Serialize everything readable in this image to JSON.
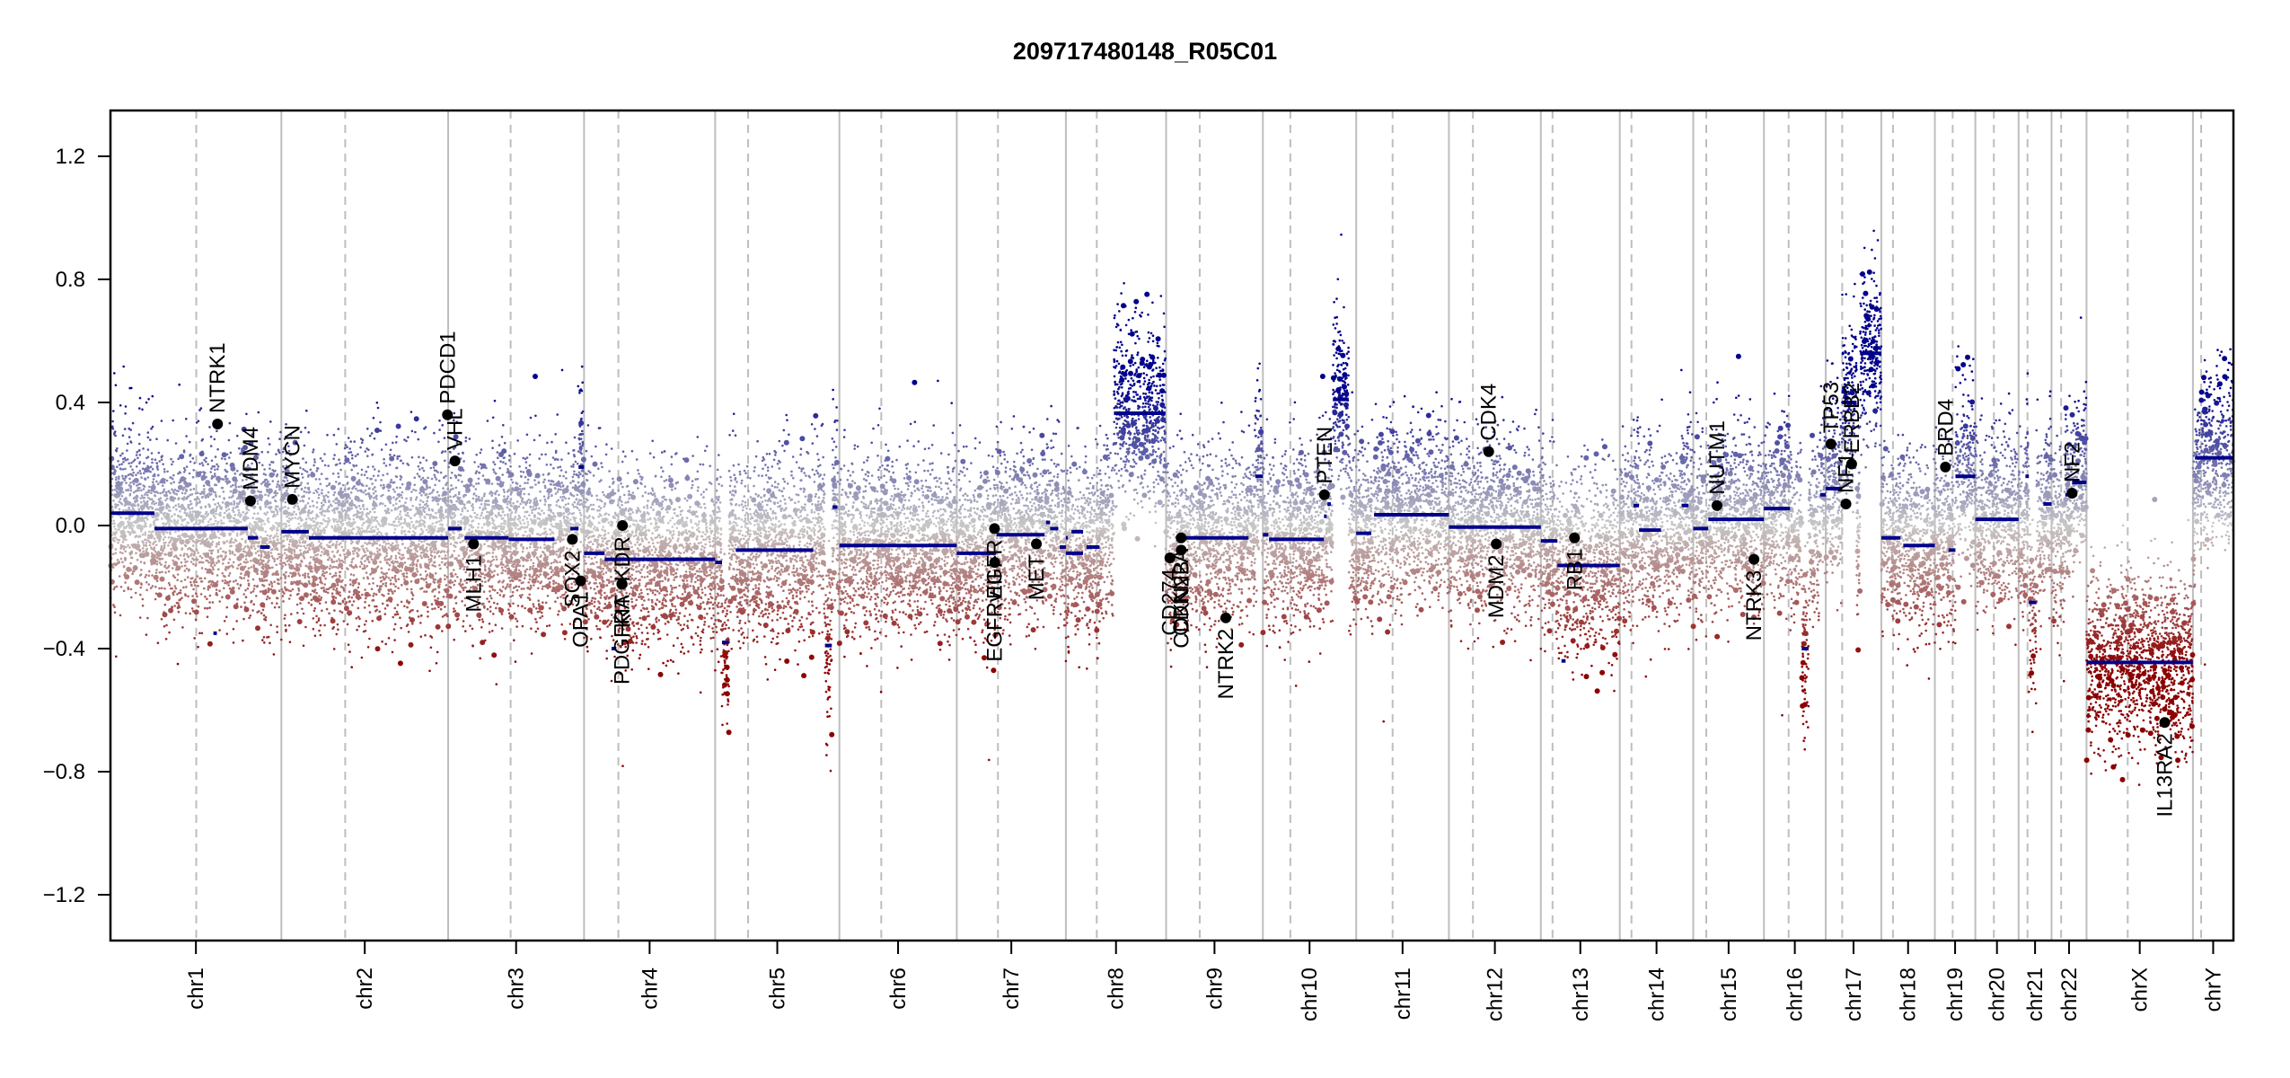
{
  "chart_data": {
    "type": "scatter",
    "title": "209717480148_R05C01",
    "xlabel": "",
    "ylabel": "",
    "ylim": [
      -1.35,
      1.35
    ],
    "yticks": [
      1.2,
      0.8,
      0.4,
      0.0,
      -0.4,
      -0.8,
      -1.2
    ],
    "ytick_labels": [
      "1.2",
      "0.8",
      "0.4",
      "0.0",
      "−0.4",
      "−0.8",
      "−1.2"
    ],
    "grid": false,
    "colors": {
      "gain": "#00008b",
      "neutral": "#c8c8c8",
      "loss": "#8b0000",
      "segment": "#00008b",
      "gene_point": "#000000",
      "chrom_boundary": "#bebebe",
      "centromere": "#bebebe"
    },
    "chromosomes": [
      {
        "name": "chr1",
        "length_mb": 249,
        "centromere_mb": 125
      },
      {
        "name": "chr2",
        "length_mb": 243,
        "centromere_mb": 93
      },
      {
        "name": "chr3",
        "length_mb": 198,
        "centromere_mb": 91
      },
      {
        "name": "chr4",
        "length_mb": 191,
        "centromere_mb": 50
      },
      {
        "name": "chr5",
        "length_mb": 181,
        "centromere_mb": 48
      },
      {
        "name": "chr6",
        "length_mb": 171,
        "centromere_mb": 61
      },
      {
        "name": "chr7",
        "length_mb": 159,
        "centromere_mb": 60
      },
      {
        "name": "chr8",
        "length_mb": 146,
        "centromere_mb": 45
      },
      {
        "name": "chr9",
        "length_mb": 141,
        "centromere_mb": 49
      },
      {
        "name": "chr10",
        "length_mb": 136,
        "centromere_mb": 40
      },
      {
        "name": "chr11",
        "length_mb": 135,
        "centromere_mb": 53
      },
      {
        "name": "chr12",
        "length_mb": 134,
        "centromere_mb": 35
      },
      {
        "name": "chr13",
        "length_mb": 115,
        "centromere_mb": 17
      },
      {
        "name": "chr14",
        "length_mb": 107,
        "centromere_mb": 17
      },
      {
        "name": "chr15",
        "length_mb": 103,
        "centromere_mb": 19
      },
      {
        "name": "chr16",
        "length_mb": 90,
        "centromere_mb": 36
      },
      {
        "name": "chr17",
        "length_mb": 81,
        "centromere_mb": 24
      },
      {
        "name": "chr18",
        "length_mb": 78,
        "centromere_mb": 17
      },
      {
        "name": "chr19",
        "length_mb": 59,
        "centromere_mb": 26
      },
      {
        "name": "chr20",
        "length_mb": 63,
        "centromere_mb": 27
      },
      {
        "name": "chr21",
        "length_mb": 48,
        "centromere_mb": 13
      },
      {
        "name": "chr22",
        "length_mb": 51,
        "centromere_mb": 14
      },
      {
        "name": "chrX",
        "length_mb": 155,
        "centromere_mb": 60
      },
      {
        "name": "chrY",
        "length_mb": 59,
        "centromere_mb": 12
      }
    ],
    "segments": [
      {
        "chr": "chr1",
        "start": 0,
        "end": 64,
        "value": 0.04
      },
      {
        "chr": "chr1",
        "start": 64,
        "end": 200,
        "value": -0.01
      },
      {
        "chr": "chr1",
        "start": 200,
        "end": 215,
        "value": -0.04
      },
      {
        "chr": "chr1",
        "start": 218,
        "end": 232,
        "value": -0.07
      },
      {
        "chr": "chr1",
        "start": 150,
        "end": 155,
        "value": -0.35
      },
      {
        "chr": "chr2",
        "start": 0,
        "end": 40,
        "value": -0.02
      },
      {
        "chr": "chr2",
        "start": 40,
        "end": 243,
        "value": -0.04
      },
      {
        "chr": "chr3",
        "start": 0,
        "end": 20,
        "value": -0.01
      },
      {
        "chr": "chr3",
        "start": 24,
        "end": 88,
        "value": -0.04
      },
      {
        "chr": "chr3",
        "start": 88,
        "end": 155,
        "value": -0.045
      },
      {
        "chr": "chr3",
        "start": 178,
        "end": 190,
        "value": -0.01
      },
      {
        "chr": "chr3",
        "start": 190,
        "end": 198,
        "value": 0.19
      },
      {
        "chr": "chr4",
        "start": 0,
        "end": 30,
        "value": -0.09
      },
      {
        "chr": "chr4",
        "start": 30,
        "end": 191,
        "value": -0.11
      },
      {
        "chr": "chr4",
        "start": 40,
        "end": 47,
        "value": -0.4
      },
      {
        "chr": "chr5",
        "start": 0,
        "end": 10,
        "value": -0.12
      },
      {
        "chr": "chr5",
        "start": 10,
        "end": 20,
        "value": -0.38
      },
      {
        "chr": "chr5",
        "start": 30,
        "end": 143,
        "value": -0.08
      },
      {
        "chr": "chr5",
        "start": 160,
        "end": 170,
        "value": -0.39
      },
      {
        "chr": "chr5",
        "start": 171,
        "end": 178,
        "value": 0.06
      },
      {
        "chr": "chr6",
        "start": 0,
        "end": 171,
        "value": -0.065
      },
      {
        "chr": "chr7",
        "start": 0,
        "end": 50,
        "value": -0.09
      },
      {
        "chr": "chr7",
        "start": 50,
        "end": 57,
        "value": -0.09
      },
      {
        "chr": "chr7",
        "start": 58,
        "end": 128,
        "value": -0.03
      },
      {
        "chr": "chr7",
        "start": 130,
        "end": 136,
        "value": 0.01
      },
      {
        "chr": "chr7",
        "start": 136,
        "end": 148,
        "value": -0.01
      },
      {
        "chr": "chr7",
        "start": 150,
        "end": 159,
        "value": -0.07
      },
      {
        "chr": "chr8",
        "start": 0,
        "end": 25,
        "value": -0.09
      },
      {
        "chr": "chr8",
        "start": 0,
        "end": 3,
        "value": -0.04
      },
      {
        "chr": "chr8",
        "start": 8,
        "end": 25,
        "value": -0.02
      },
      {
        "chr": "chr8",
        "start": 30,
        "end": 49,
        "value": -0.07
      },
      {
        "chr": "chr8",
        "start": 70,
        "end": 145,
        "value": 0.365
      },
      {
        "chr": "chr9",
        "start": 0,
        "end": 8,
        "value": -0.1
      },
      {
        "chr": "chr9",
        "start": 22,
        "end": 120,
        "value": -0.04
      },
      {
        "chr": "chr9",
        "start": 130,
        "end": 141,
        "value": 0.16
      },
      {
        "chr": "chr10",
        "start": 0,
        "end": 8,
        "value": -0.03
      },
      {
        "chr": "chr10",
        "start": 9,
        "end": 89,
        "value": -0.045
      },
      {
        "chr": "chr10",
        "start": 89,
        "end": 93,
        "value": 0.03
      },
      {
        "chr": "chr10",
        "start": 94,
        "end": 99,
        "value": 0.07
      },
      {
        "chr": "chr10",
        "start": 102,
        "end": 125,
        "value": 0.41
      },
      {
        "chr": "chr11",
        "start": 0,
        "end": 22,
        "value": -0.025
      },
      {
        "chr": "chr11",
        "start": 26,
        "end": 135,
        "value": 0.035
      },
      {
        "chr": "chr12",
        "start": 0,
        "end": 134,
        "value": -0.005
      },
      {
        "chr": "chr13",
        "start": 0,
        "end": 24,
        "value": -0.05
      },
      {
        "chr": "chr13",
        "start": 24,
        "end": 115,
        "value": -0.13
      },
      {
        "chr": "chr13",
        "start": 30,
        "end": 36,
        "value": -0.44
      },
      {
        "chr": "chr14",
        "start": 20,
        "end": 28,
        "value": 0.065
      },
      {
        "chr": "chr14",
        "start": 28,
        "end": 60,
        "value": -0.015
      },
      {
        "chr": "chr14",
        "start": 90,
        "end": 100,
        "value": 0.065
      },
      {
        "chr": "chr15",
        "start": 0,
        "end": 22,
        "value": -0.01
      },
      {
        "chr": "chr15",
        "start": 22,
        "end": 103,
        "value": 0.02
      },
      {
        "chr": "chr16",
        "start": 0,
        "end": 38,
        "value": 0.055
      },
      {
        "chr": "chr16",
        "start": 55,
        "end": 65,
        "value": -0.4
      },
      {
        "chr": "chr16",
        "start": 82,
        "end": 90,
        "value": 0.1
      },
      {
        "chr": "chr17",
        "start": 0,
        "end": 24,
        "value": 0.12
      },
      {
        "chr": "chr17",
        "start": 24,
        "end": 45,
        "value": 0.4
      },
      {
        "chr": "chr17",
        "start": 50,
        "end": 81,
        "value": 0.56
      },
      {
        "chr": "chr18",
        "start": 0,
        "end": 28,
        "value": -0.04
      },
      {
        "chr": "chr18",
        "start": 32,
        "end": 78,
        "value": -0.065
      },
      {
        "chr": "chr19",
        "start": 20,
        "end": 30,
        "value": -0.08
      },
      {
        "chr": "chr19",
        "start": 30,
        "end": 59,
        "value": 0.16
      },
      {
        "chr": "chr20",
        "start": 0,
        "end": 63,
        "value": 0.02
      },
      {
        "chr": "chr21",
        "start": 10,
        "end": 15,
        "value": 0.16
      },
      {
        "chr": "chr21",
        "start": 15,
        "end": 26,
        "value": -0.25
      },
      {
        "chr": "chr21",
        "start": 36,
        "end": 48,
        "value": 0.07
      },
      {
        "chr": "chr22",
        "start": 20,
        "end": 30,
        "value": 0.1
      },
      {
        "chr": "chr22",
        "start": 30,
        "end": 51,
        "value": 0.14
      },
      {
        "chr": "chrX",
        "start": 0,
        "end": 155,
        "value": -0.445
      },
      {
        "chrY": true,
        "chr": "chrY",
        "start": 3,
        "end": 59,
        "value": 0.22
      }
    ],
    "genes": [
      {
        "name": "NTRK1",
        "chr": "chr1",
        "pos": 156,
        "value": 0.33,
        "label_side": "above"
      },
      {
        "name": "MDM4",
        "chr": "chr1",
        "pos": 204,
        "value": 0.08,
        "label_side": "above"
      },
      {
        "name": "MYCN",
        "chr": "chr2",
        "pos": 16,
        "value": 0.085,
        "label_side": "above"
      },
      {
        "name": "PDCD1",
        "chr": "chr2",
        "pos": 242,
        "value": 0.36,
        "label_side": "above"
      },
      {
        "name": "VHL",
        "chr": "chr3",
        "pos": 10,
        "value": 0.21,
        "label_side": "above"
      },
      {
        "name": "MLH1",
        "chr": "chr3",
        "pos": 37,
        "value": -0.06,
        "label_side": "below"
      },
      {
        "name": "SOX2",
        "chr": "chr3",
        "pos": 181,
        "value": -0.045,
        "label_side": "below"
      },
      {
        "name": "OPA1",
        "chr": "chr3",
        "pos": 193,
        "value": -0.18,
        "label_side": "below"
      },
      {
        "name": "PDGFRA",
        "chr": "chr4",
        "pos": 55,
        "value": -0.19,
        "label_side": "below"
      },
      {
        "name": "KIT",
        "chr": "chr4",
        "pos": 55.5,
        "value": -0.19,
        "label_side": "below"
      },
      {
        "name": "KDR",
        "chr": "chr4",
        "pos": 56,
        "value": 0.0,
        "label_side": "below"
      },
      {
        "name": "EGFR",
        "chr": "chr7",
        "pos": 55,
        "value": -0.01,
        "label_side": "below"
      },
      {
        "name": "EGFRvIII",
        "chr": "chr7",
        "pos": 55.3,
        "value": -0.12,
        "label_side": "below"
      },
      {
        "name": "MET",
        "chr": "chr7",
        "pos": 116,
        "value": -0.06,
        "label_side": "below"
      },
      {
        "name": "CD274",
        "chr": "chr9",
        "pos": 5.5,
        "value": -0.105,
        "label_side": "below"
      },
      {
        "name": "CDKN2A",
        "chr": "chr9",
        "pos": 21.9,
        "value": -0.04,
        "label_side": "below"
      },
      {
        "name": "CDKN2B",
        "chr": "chr9",
        "pos": 22.0,
        "value": -0.08,
        "label_side": "below"
      },
      {
        "name": "NTRK2",
        "chr": "chr9",
        "pos": 87,
        "value": -0.3,
        "label_side": "below"
      },
      {
        "name": "PTEN",
        "chr": "chr10",
        "pos": 89.6,
        "value": 0.1,
        "label_side": "above"
      },
      {
        "name": "CDK4",
        "chr": "chr12",
        "pos": 58,
        "value": 0.24,
        "label_side": "above"
      },
      {
        "name": "MDM2",
        "chr": "chr12",
        "pos": 69,
        "value": -0.06,
        "label_side": "below"
      },
      {
        "name": "RB1",
        "chr": "chr13",
        "pos": 49,
        "value": -0.04,
        "label_side": "below"
      },
      {
        "name": "NUTM1",
        "chr": "chr15",
        "pos": 34.6,
        "value": 0.065,
        "label_side": "above"
      },
      {
        "name": "NTRK3",
        "chr": "chr15",
        "pos": 88.5,
        "value": -0.11,
        "label_side": "below"
      },
      {
        "name": "TP53",
        "chr": "chr17",
        "pos": 7.6,
        "value": 0.265,
        "label_side": "above"
      },
      {
        "name": "NF1",
        "chr": "chr17",
        "pos": 29.5,
        "value": 0.07,
        "label_side": "above"
      },
      {
        "name": "ERBB2",
        "chr": "chr17",
        "pos": 37.8,
        "value": 0.2,
        "label_side": "above"
      },
      {
        "name": "BRD4",
        "chr": "chr19",
        "pos": 15.4,
        "value": 0.19,
        "label_side": "above"
      },
      {
        "name": "NF2",
        "chr": "chr22",
        "pos": 30,
        "value": 0.105,
        "label_side": "above"
      },
      {
        "name": "IL13RA2",
        "chrX": true,
        "chr": "chrX",
        "pos": 114,
        "value": -0.64,
        "label_side": "below"
      }
    ]
  }
}
